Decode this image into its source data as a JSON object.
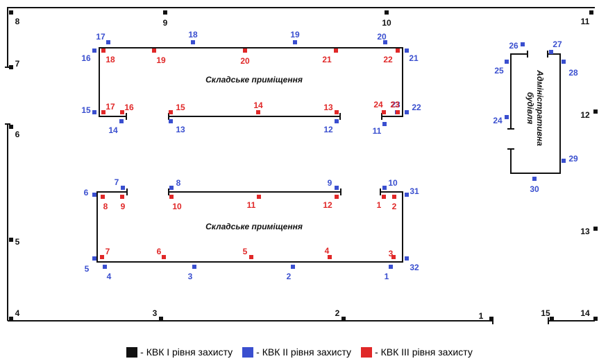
{
  "colors": {
    "level1": "#111111",
    "level2": "#3a4fcf",
    "level3": "#e02828",
    "walls": "#111111"
  },
  "rooms": {
    "warehouse_top": "Складське приміщення",
    "warehouse_bottom": "Складське приміщення",
    "admin": [
      "Адміністративна",
      "будівля"
    ]
  },
  "markers": {
    "level1": [
      "1",
      "2",
      "3",
      "4",
      "5",
      "6",
      "7",
      "8",
      "9",
      "10",
      "11",
      "12",
      "13",
      "14",
      "15"
    ],
    "level2": [
      "1",
      "2",
      "3",
      "4",
      "5",
      "6",
      "7",
      "8",
      "9",
      "10",
      "11",
      "12",
      "13",
      "14",
      "15",
      "16",
      "17",
      "18",
      "19",
      "20",
      "21",
      "22",
      "23",
      "24",
      "25",
      "26",
      "27",
      "28",
      "29",
      "30",
      "31",
      "32"
    ],
    "level3": [
      "1",
      "2",
      "3",
      "4",
      "5",
      "6",
      "7",
      "8",
      "9",
      "10",
      "11",
      "12",
      "13",
      "14",
      "15",
      "16",
      "17",
      "18",
      "19",
      "20",
      "21",
      "22",
      "23",
      "24"
    ]
  },
  "legend": [
    {
      "level": "level1",
      "label": "- КВК І рівня захисту"
    },
    {
      "level": "level2",
      "label": "- КВК ІІ рівня захисту"
    },
    {
      "level": "level3",
      "label": "- КВК ІІІ рівня захисту"
    }
  ]
}
